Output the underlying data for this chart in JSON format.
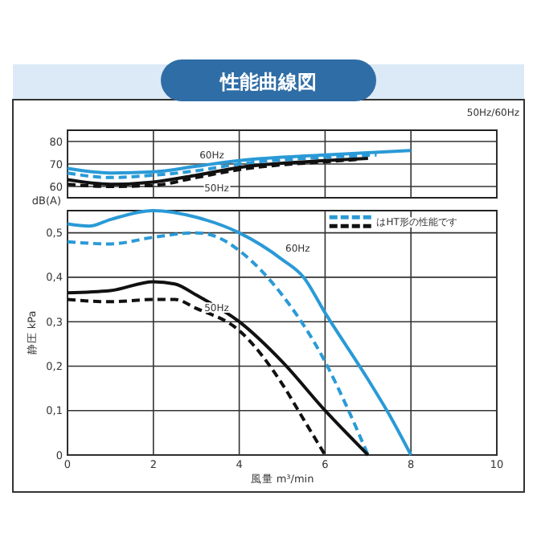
{
  "chart_data": [
    {
      "type": "line",
      "title": "性能曲線図",
      "ylabel": "dB(A)",
      "xlim": [
        0,
        10
      ],
      "xticks": [
        0,
        2,
        4,
        6,
        8,
        10
      ],
      "ylim": [
        55,
        85
      ],
      "yticks": [
        60,
        70,
        80
      ],
      "grid": true,
      "tick_labels": "y",
      "series": [
        {
          "name": "60Hz",
          "color": "#2a9ad6",
          "line_style": "solid",
          "x": [
            0,
            1,
            2,
            3,
            4,
            6,
            8
          ],
          "values": [
            68,
            66,
            66.5,
            69,
            71.5,
            74,
            76
          ]
        },
        {
          "color": "#2a9ad6",
          "line_style": "dashed",
          "x": [
            0,
            1,
            2,
            3,
            4,
            6,
            7.2
          ],
          "values": [
            66,
            64,
            65,
            67,
            70,
            73,
            74
          ]
        },
        {
          "name": "50Hz",
          "color": "#111111",
          "line_style": "solid",
          "x": [
            0,
            1,
            2,
            3,
            4,
            6,
            7
          ],
          "values": [
            63,
            61,
            62,
            65,
            68.5,
            71.5,
            72.5
          ]
        },
        {
          "color": "#111111",
          "line_style": "dashed",
          "x": [
            0,
            1,
            2,
            3,
            4,
            6,
            6.8
          ],
          "values": [
            61,
            60,
            60.5,
            64,
            67.5,
            71,
            72
          ]
        }
      ],
      "annotations": [
        "50Hz/60Hz"
      ]
    },
    {
      "type": "line",
      "xlabel": "風量 m³/min",
      "ylabel": "静圧 kPa",
      "xlim": [
        0,
        10
      ],
      "xticks": [
        0,
        2,
        4,
        6,
        8,
        10
      ],
      "ylim": [
        0,
        0.55
      ],
      "yticks": [
        0,
        {
          "value": 0.1,
          "label": "0,1"
        },
        {
          "value": 0.2,
          "label": "0,2"
        },
        {
          "value": 0.3,
          "label": "0,3"
        },
        {
          "value": 0.4,
          "label": "0,4"
        },
        {
          "value": 0.5,
          "label": "0,5"
        }
      ],
      "grid": true,
      "series": [
        {
          "name": "60Hz",
          "color": "#2a9ad6",
          "line_style": "solid",
          "x": [
            0,
            0.5,
            1,
            2,
            3,
            4,
            5,
            5.5,
            6,
            7,
            7.5,
            8
          ],
          "values": [
            0.52,
            0.515,
            0.53,
            0.55,
            0.535,
            0.5,
            0.44,
            0.4,
            0.32,
            0.17,
            0.09,
            0
          ]
        },
        {
          "color": "#2a9ad6",
          "line_style": "dashed",
          "x": [
            0,
            1,
            2,
            3,
            3.5,
            4,
            5,
            6,
            6.5,
            7
          ],
          "values": [
            0.48,
            0.475,
            0.49,
            0.5,
            0.49,
            0.46,
            0.36,
            0.21,
            0.11,
            0
          ]
        },
        {
          "name": "50Hz",
          "color": "#111111",
          "line_style": "solid",
          "x": [
            0,
            1,
            2,
            2.5,
            3,
            4,
            5,
            6,
            7
          ],
          "values": [
            0.365,
            0.37,
            0.39,
            0.385,
            0.36,
            0.3,
            0.21,
            0.1,
            0
          ]
        },
        {
          "color": "#111111",
          "line_style": "dashed",
          "x": [
            0,
            1,
            2,
            2.5,
            3,
            4,
            5,
            5.5,
            6
          ],
          "values": [
            0.35,
            0.345,
            0.35,
            0.35,
            0.33,
            0.28,
            0.16,
            0.08,
            0
          ]
        }
      ],
      "annotations": [
        "はHT形の性能です"
      ]
    }
  ]
}
